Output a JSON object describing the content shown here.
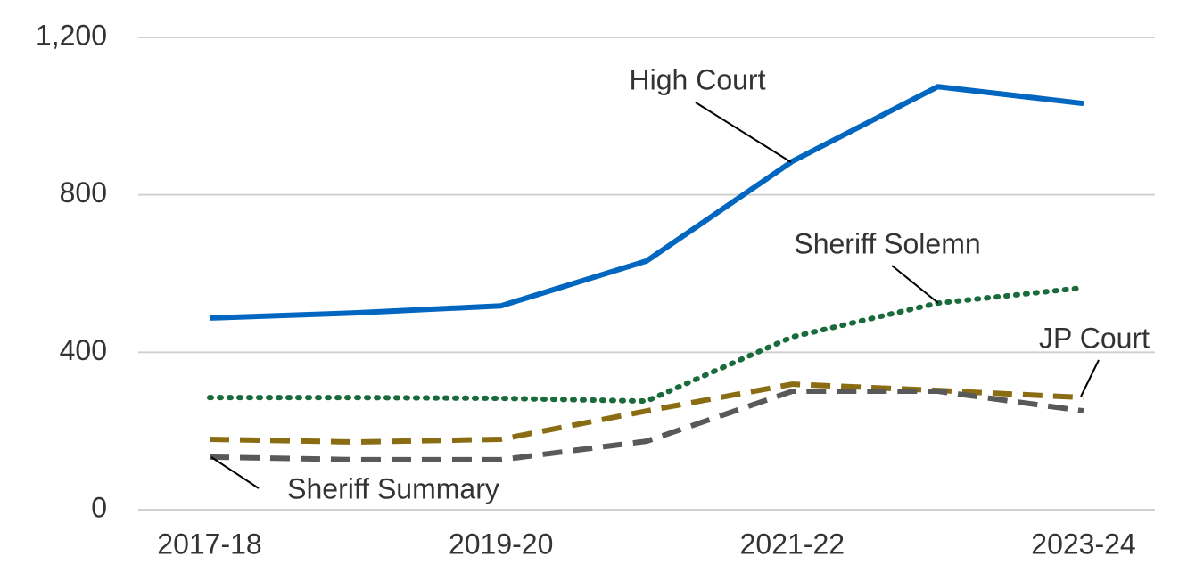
{
  "chart_data": {
    "type": "line",
    "categories": [
      "2017-18",
      null,
      "2019-20",
      null,
      "2021-22",
      null,
      "2023-24"
    ],
    "series": [
      {
        "name": "High Court",
        "color": "#0066c0",
        "style": "solid",
        "values": [
          487,
          500,
          518,
          632,
          885,
          1075,
          1032
        ]
      },
      {
        "name": "Sheriff Solemn",
        "color": "#1a6b3c",
        "style": "dotted",
        "values": [
          285,
          285,
          283,
          276,
          439,
          525,
          564
        ]
      },
      {
        "name": "JP Court",
        "color": "#8a6d12",
        "style": "dashed",
        "values": [
          179,
          172,
          179,
          251,
          319,
          303,
          285
        ]
      },
      {
        "name": "Sheriff Summary",
        "color": "#595959",
        "style": "dashed",
        "values": [
          134,
          127,
          127,
          174,
          301,
          301,
          251
        ]
      }
    ],
    "ylim": [
      0,
      1200
    ],
    "yticks": [
      0,
      400,
      800,
      {
        "value": 1200,
        "label": "1,200"
      }
    ],
    "grid": true
  }
}
